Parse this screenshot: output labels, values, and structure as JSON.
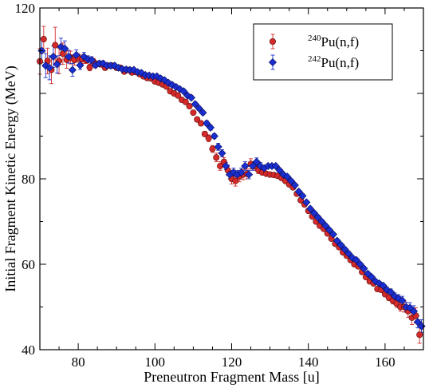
{
  "chart_data": {
    "type": "scatter",
    "xlabel": "Preneutron Fragment Mass [u]",
    "ylabel": "Initial Fragment Kinetic Energy (MeV)",
    "xlim": [
      70,
      170
    ],
    "ylim": [
      40,
      120
    ],
    "x_ticks": [
      80,
      100,
      120,
      140,
      160
    ],
    "y_ticks": [
      40,
      60,
      80,
      120
    ],
    "legend_position": "top-right",
    "grid": false,
    "series": [
      {
        "name": "240Pu(n,f)",
        "label_sup": "240",
        "label_main": "Pu(n,f)",
        "color": "#d42a2a",
        "marker": "circle",
        "x": [
          70,
          71,
          72,
          73,
          74,
          75,
          76,
          77,
          78,
          79,
          80,
          81,
          82,
          83,
          84,
          85,
          86,
          87,
          88,
          89,
          90,
          91,
          92,
          93,
          94,
          95,
          96,
          97,
          98,
          99,
          100,
          101,
          102,
          103,
          104,
          105,
          106,
          107,
          108,
          109,
          110,
          111,
          112,
          113,
          114,
          115,
          116,
          117,
          118,
          119,
          120,
          121,
          122,
          123,
          124,
          125,
          126,
          127,
          128,
          129,
          130,
          131,
          132,
          133,
          134,
          135,
          136,
          137,
          138,
          139,
          140,
          141,
          142,
          143,
          144,
          145,
          146,
          147,
          148,
          149,
          150,
          151,
          152,
          153,
          154,
          155,
          156,
          157,
          158,
          159,
          160,
          161,
          162,
          163,
          164,
          165,
          166,
          167,
          168,
          169
        ],
        "y": [
          107.5,
          112.7,
          107.6,
          105.5,
          111.3,
          107.6,
          109.3,
          107.9,
          108.4,
          107.8,
          108.3,
          108.0,
          107.8,
          106.1,
          107.4,
          106.9,
          106.8,
          106.0,
          106.5,
          106.5,
          106.0,
          106.0,
          105.1,
          105.5,
          104.9,
          105.0,
          104.5,
          104.0,
          103.6,
          103.5,
          102.8,
          102.5,
          102.1,
          101.6,
          100.5,
          100.0,
          99.5,
          98.5,
          98.0,
          97.0,
          95.5,
          93.9,
          93.0,
          90.5,
          89.5,
          87.0,
          85.0,
          83.0,
          84.0,
          82.0,
          80.0,
          79.5,
          80.5,
          81.0,
          81.2,
          83.5,
          83.0,
          82.0,
          81.5,
          81.2,
          81.0,
          80.9,
          80.7,
          80.2,
          79.5,
          78.7,
          78.0,
          76.5,
          75.0,
          74.0,
          72.5,
          71.2,
          70.0,
          69.0,
          68.3,
          67.2,
          66.0,
          64.8,
          64.0,
          62.8,
          62.0,
          61.0,
          60.0,
          59.5,
          58.2,
          57.0,
          56.0,
          55.5,
          54.2,
          54.0,
          53.0,
          52.2,
          51.5,
          50.8,
          50.0,
          50.0,
          49.0,
          47.5,
          48.0,
          43.5
        ],
        "err": [
          3.0,
          3.0,
          3.0,
          3.2,
          4.2,
          3.0,
          2.5,
          2.0,
          1.5,
          1.2,
          1.0,
          1.0,
          0.8,
          0.8,
          0.8,
          0.6,
          0.6,
          0.5,
          0.5,
          0.5,
          0.5,
          0.5,
          0.5,
          0.5,
          0.5,
          0.5,
          0.5,
          0.5,
          0.5,
          0.5,
          0.5,
          0.5,
          0.5,
          0.5,
          0.5,
          0.5,
          0.5,
          0.5,
          0.5,
          0.5,
          0.5,
          0.5,
          0.6,
          0.6,
          0.8,
          0.8,
          1.0,
          1.0,
          1.0,
          1.2,
          1.2,
          1.2,
          1.2,
          1.2,
          1.2,
          1.2,
          1.0,
          0.8,
          0.6,
          0.5,
          0.5,
          0.5,
          0.5,
          0.5,
          0.5,
          0.5,
          0.5,
          0.5,
          0.5,
          0.5,
          0.5,
          0.5,
          0.5,
          0.5,
          0.5,
          0.5,
          0.5,
          0.5,
          0.5,
          0.5,
          0.5,
          0.5,
          0.5,
          0.5,
          0.5,
          0.5,
          0.5,
          0.5,
          0.5,
          0.5,
          0.6,
          0.7,
          0.8,
          0.9,
          1.0,
          1.2,
          1.4,
          1.6,
          1.8,
          2.0
        ]
      },
      {
        "name": "242Pu(n,f)",
        "label_sup": "242",
        "label_main": "Pu(n,f)",
        "color": "#1a2fd0",
        "marker": "diamond",
        "x": [
          70.5,
          71.5,
          72.5,
          73.5,
          74.5,
          75.5,
          76.5,
          77.5,
          78.5,
          79.5,
          80.5,
          81.5,
          82.5,
          83.5,
          84.5,
          85.5,
          86.5,
          87.5,
          88.5,
          89.5,
          90.5,
          91.5,
          92.5,
          93.5,
          94.5,
          95.5,
          96.5,
          97.5,
          98.5,
          99.5,
          100.5,
          101.5,
          102.5,
          103.5,
          104.5,
          105.5,
          106.5,
          107.5,
          108.5,
          109.5,
          110.5,
          111.5,
          112.5,
          113.5,
          114.5,
          115.5,
          116.5,
          117.5,
          118.5,
          119.5,
          120.5,
          121.5,
          122.5,
          123.5,
          124.5,
          125.5,
          126.5,
          127.5,
          128.5,
          129.5,
          130.5,
          131.5,
          132.5,
          133.5,
          134.5,
          135.5,
          136.5,
          137.5,
          138.5,
          139.5,
          140.5,
          141.5,
          142.5,
          143.5,
          144.5,
          145.5,
          146.5,
          147.5,
          148.5,
          149.5,
          150.5,
          151.5,
          152.5,
          153.5,
          154.5,
          155.5,
          156.5,
          157.5,
          158.5,
          159.5,
          160.5,
          161.5,
          162.5,
          163.5,
          164.5,
          165.5,
          166.5,
          167.5,
          168.5,
          169.5
        ],
        "y": [
          110.0,
          106.5,
          106.0,
          108.6,
          106.8,
          110.9,
          110.5,
          108.6,
          105.5,
          109.0,
          106.6,
          108.6,
          108.0,
          107.8,
          106.6,
          107.0,
          107.0,
          106.5,
          106.5,
          106.5,
          106.0,
          105.7,
          105.6,
          105.5,
          105.5,
          105.0,
          104.8,
          104.3,
          104.2,
          104.0,
          104.0,
          103.5,
          103.1,
          102.5,
          102.0,
          101.5,
          101.0,
          100.5,
          99.5,
          99.0,
          97.5,
          96.5,
          95.5,
          93.0,
          92.0,
          90.0,
          87.5,
          86.0,
          83.0,
          81.0,
          81.5,
          81.0,
          81.5,
          83.0,
          81.0,
          83.0,
          84.0,
          83.0,
          82.5,
          83.0,
          83.0,
          83.0,
          82.0,
          81.0,
          80.5,
          79.5,
          78.5,
          77.0,
          76.0,
          74.5,
          73.0,
          72.0,
          71.0,
          70.0,
          69.0,
          68.0,
          67.0,
          65.5,
          64.5,
          63.5,
          62.5,
          61.5,
          61.0,
          60.0,
          59.0,
          57.8,
          57.0,
          56.0,
          55.5,
          55.0,
          54.0,
          53.5,
          52.5,
          52.0,
          51.5,
          50.0,
          49.8,
          49.0,
          46.5,
          45.5
        ],
        "err": [
          2.8,
          2.8,
          2.8,
          2.5,
          2.0,
          2.0,
          1.8,
          1.5,
          1.5,
          1.2,
          1.0,
          1.0,
          0.8,
          0.8,
          0.6,
          0.6,
          0.6,
          0.5,
          0.5,
          0.5,
          0.5,
          0.5,
          0.5,
          0.5,
          0.5,
          0.5,
          0.5,
          0.5,
          0.5,
          0.5,
          0.5,
          0.5,
          0.5,
          0.5,
          0.5,
          0.5,
          0.5,
          0.5,
          0.5,
          0.5,
          0.5,
          0.5,
          0.5,
          0.6,
          0.6,
          0.6,
          0.8,
          0.8,
          0.8,
          1.0,
          1.0,
          1.0,
          1.0,
          1.0,
          1.0,
          1.0,
          0.9,
          0.8,
          0.6,
          0.5,
          0.5,
          0.5,
          0.5,
          0.5,
          0.5,
          0.5,
          0.5,
          0.5,
          0.5,
          0.5,
          0.5,
          0.5,
          0.5,
          0.5,
          0.5,
          0.5,
          0.5,
          0.5,
          0.5,
          0.5,
          0.5,
          0.5,
          0.5,
          0.5,
          0.5,
          0.5,
          0.5,
          0.5,
          0.5,
          0.5,
          0.6,
          0.7,
          0.8,
          0.9,
          1.0,
          1.1,
          1.2,
          1.3,
          1.4,
          1.5
        ]
      }
    ]
  }
}
